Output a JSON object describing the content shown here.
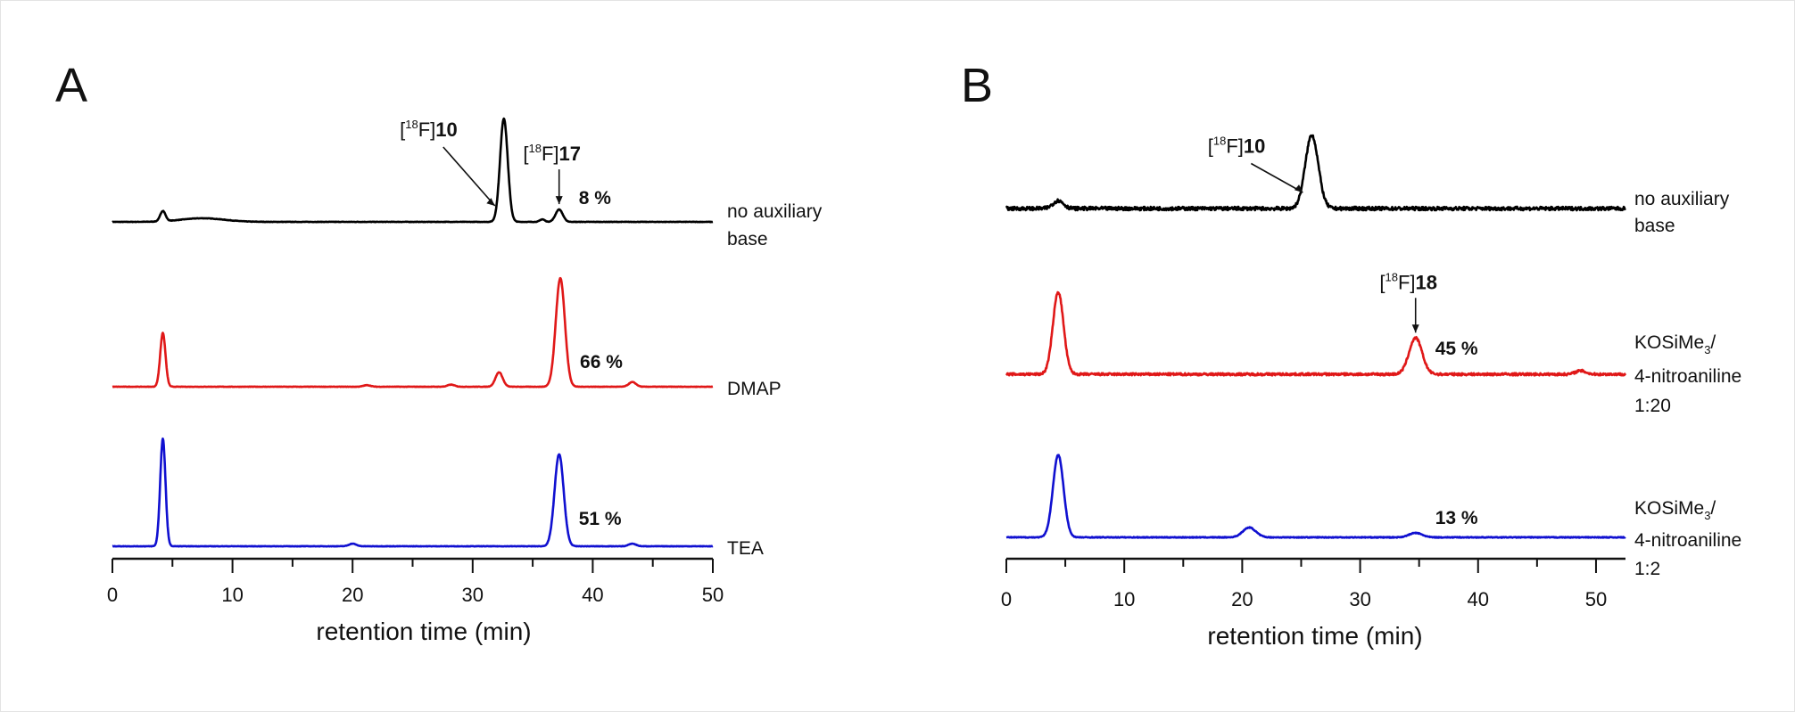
{
  "chart_data": [
    {
      "type": "line",
      "panel_label": "A",
      "xlabel": "retention time (min)",
      "ylabel": "",
      "xlim": [
        0,
        50
      ],
      "xticks": [
        0,
        10,
        20,
        30,
        40,
        50
      ],
      "grid": false,
      "series": [
        {
          "name": "no auxiliary base",
          "label_lines": [
            "no auxiliary",
            "base"
          ],
          "color": "#000000",
          "baseline_noise": 0.02,
          "peaks": [
            {
              "t": 4.2,
              "h": 1.0,
              "w": 0.22
            },
            {
              "t": 7.5,
              "h": 0.35,
              "w": 1.8
            },
            {
              "t": 32.6,
              "h": 10.0,
              "w": 0.32
            },
            {
              "t": 35.8,
              "h": 0.25,
              "w": 0.2
            },
            {
              "t": 37.2,
              "h": 1.2,
              "w": 0.3
            }
          ],
          "annotations": [
            {
              "compound": "10",
              "t": 32.6
            },
            {
              "compound": "17",
              "t": 37.2,
              "percent": "8 %"
            }
          ]
        },
        {
          "name": "DMAP",
          "label_lines": [
            "DMAP"
          ],
          "color": "#e01818",
          "baseline_noise": 0.02,
          "peaks": [
            {
              "t": 4.2,
              "h": 5.2,
              "w": 0.22
            },
            {
              "t": 21.2,
              "h": 0.15,
              "w": 0.3
            },
            {
              "t": 28.2,
              "h": 0.2,
              "w": 0.3
            },
            {
              "t": 32.2,
              "h": 1.4,
              "w": 0.3
            },
            {
              "t": 37.3,
              "h": 10.5,
              "w": 0.38
            },
            {
              "t": 43.3,
              "h": 0.45,
              "w": 0.3
            }
          ],
          "annotations": [
            {
              "t": 37.3,
              "percent": "66 %"
            }
          ]
        },
        {
          "name": "TEA",
          "label_lines": [
            "TEA"
          ],
          "color": "#1010d0",
          "baseline_noise": 0.02,
          "peaks": [
            {
              "t": 4.2,
              "h": 10.4,
              "w": 0.22
            },
            {
              "t": 20.0,
              "h": 0.25,
              "w": 0.3
            },
            {
              "t": 37.2,
              "h": 8.9,
              "w": 0.38
            },
            {
              "t": 43.3,
              "h": 0.25,
              "w": 0.3
            }
          ],
          "annotations": [
            {
              "t": 37.2,
              "percent": "51 %"
            }
          ]
        }
      ]
    },
    {
      "type": "line",
      "panel_label": "B",
      "xlabel": "retention time (min)",
      "ylabel": "",
      "xlim": [
        0,
        52.5
      ],
      "xticks": [
        0,
        10,
        20,
        30,
        40,
        50
      ],
      "grid": false,
      "series": [
        {
          "name": "no auxiliary base",
          "label_lines": [
            "no auxiliary",
            "base"
          ],
          "color": "#000000",
          "baseline_noise": 0.18,
          "peaks": [
            {
              "t": 4.4,
              "h": 0.8,
              "w": 0.45
            },
            {
              "t": 25.9,
              "h": 7.5,
              "w": 0.55
            }
          ],
          "annotations": [
            {
              "compound": "10",
              "t": 25.9
            }
          ]
        },
        {
          "name": "KOSiMe3/4-nitroaniline 1:20",
          "label_lines": [
            "KOSiMe",
            "4-nitroaniline",
            "1:20"
          ],
          "label_sub": "3",
          "color": "#e01818",
          "baseline_noise": 0.12,
          "peaks": [
            {
              "t": 4.4,
              "h": 8.4,
              "w": 0.45
            },
            {
              "t": 34.7,
              "h": 3.7,
              "w": 0.55
            },
            {
              "t": 48.7,
              "h": 0.35,
              "w": 0.45
            }
          ],
          "annotations": [
            {
              "compound": "18",
              "t": 34.7,
              "percent": "45 %"
            }
          ]
        },
        {
          "name": "KOSiMe3/4-nitroaniline 1:2",
          "label_lines": [
            "KOSiMe",
            "4-nitroaniline",
            "1:2"
          ],
          "label_sub": "3",
          "color": "#1010d0",
          "baseline_noise": 0.04,
          "peaks": [
            {
              "t": 4.4,
              "h": 8.4,
              "w": 0.45
            },
            {
              "t": 20.6,
              "h": 1.0,
              "w": 0.55
            },
            {
              "t": 34.7,
              "h": 0.45,
              "w": 0.55
            }
          ],
          "annotations": [
            {
              "t": 34.7,
              "percent": "13 %"
            }
          ]
        }
      ]
    }
  ]
}
